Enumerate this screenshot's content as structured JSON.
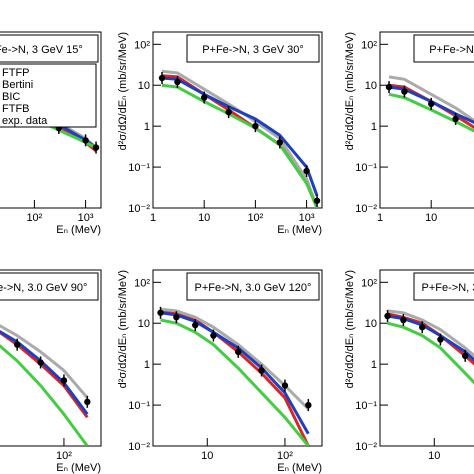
{
  "chart_data": [
    {
      "type": "line",
      "title": "P+Fe->N, 3 GeV 15°",
      "xlabel": "Eₙ (MeV)",
      "ylabel": "d²σ/dΩ/dEₙ (mb/sr/MeV)",
      "log_x": true,
      "log_y": true,
      "legend": "upper left",
      "x": [
        1.5,
        3,
        10,
        30,
        100,
        300,
        1000,
        1600
      ],
      "xlim": [
        1,
        2000
      ],
      "ylim": [
        0.01,
        200
      ],
      "xticks": [
        1,
        10,
        {
          "value": 100,
          "label": "10²"
        },
        {
          "value": 1000,
          "label": "10³"
        }
      ],
      "yticks": [
        {
          "value": 0.01,
          "label": "10⁻²"
        },
        {
          "value": 0.1,
          "label": "10⁻¹"
        },
        1,
        10,
        {
          "value": 100,
          "label": "10²"
        }
      ],
      "series": [
        {
          "name": "FTFP",
          "color": "#d62728",
          "values": [
            20,
            18,
            8,
            4,
            2,
            1,
            0.4,
            0.25
          ]
        },
        {
          "name": "Bertini",
          "color": "#aaaaaa",
          "values": [
            30,
            26,
            12,
            6,
            2.5,
            1.2,
            0.5,
            0.3
          ]
        },
        {
          "name": "BIC",
          "color": "#1f3fbf",
          "values": [
            18,
            16,
            8,
            4.5,
            2.2,
            1.1,
            0.45,
            0.3
          ]
        },
        {
          "name": "FTFB",
          "color": "#44cc44",
          "values": [
            14,
            12,
            6,
            3,
            1.5,
            0.8,
            0.4,
            0.3
          ]
        },
        {
          "name": "exp. data",
          "color": "#000000",
          "style": "points",
          "values": [
            18,
            15,
            7,
            3.5,
            1.8,
            0.9,
            0.45,
            0.3
          ]
        }
      ]
    },
    {
      "type": "line",
      "title": "P+Fe->N, 3 GeV 30°",
      "xlabel": "Eₙ (MeV)",
      "ylabel": "d²σ/dΩ/dEₙ (mb/sr/MeV)",
      "log_x": true,
      "log_y": true,
      "x": [
        1.5,
        3,
        10,
        30,
        100,
        300,
        1000,
        1600
      ],
      "xlim": [
        1,
        2000
      ],
      "ylim": [
        0.01,
        200
      ],
      "xticks": [
        1,
        10,
        {
          "value": 100,
          "label": "10²"
        },
        {
          "value": 1000,
          "label": "10³"
        }
      ],
      "yticks": [
        {
          "value": 0.01,
          "label": "10⁻²"
        },
        {
          "value": 0.1,
          "label": "10⁻¹"
        },
        1,
        10,
        {
          "value": 100,
          "label": "10²"
        }
      ],
      "series": [
        {
          "name": "FTFP",
          "color": "#d62728",
          "values": [
            17,
            16,
            6,
            2.5,
            0.9,
            0.35,
            0.05,
            0.01
          ]
        },
        {
          "name": "Bertini",
          "color": "#aaaaaa",
          "values": [
            22,
            20,
            8,
            3.5,
            1.3,
            0.5,
            0.05,
            0.01
          ]
        },
        {
          "name": "BIC",
          "color": "#1f3fbf",
          "values": [
            15,
            14,
            6,
            3,
            1.5,
            0.6,
            0.1,
            0.02
          ]
        },
        {
          "name": "FTFB",
          "color": "#44cc44",
          "values": [
            10,
            9,
            4,
            2,
            0.9,
            0.35,
            0.04,
            0.01
          ]
        },
        {
          "name": "exp. data",
          "color": "#000000",
          "style": "points",
          "values": [
            15,
            12,
            5,
            2.2,
            1,
            0.4,
            0.08,
            0.015
          ]
        }
      ]
    },
    {
      "type": "line",
      "title": "P+Fe->N, 3 GeV 45°",
      "xlabel": "Eₙ (MeV)",
      "ylabel": "d²σ/dΩ/dEₙ (mb/sr/MeV)",
      "log_x": true,
      "log_y": true,
      "x": [
        1.5,
        3,
        10,
        30,
        100,
        300,
        1000,
        1600
      ],
      "xlim": [
        1,
        2000
      ],
      "ylim": [
        0.01,
        200
      ],
      "xticks": [
        1,
        10,
        {
          "value": 100,
          "label": "10²"
        },
        {
          "value": 1000,
          "label": "10³"
        }
      ],
      "yticks": [
        {
          "value": 0.01,
          "label": "10⁻²"
        },
        {
          "value": 0.1,
          "label": "10⁻¹"
        },
        1,
        10,
        {
          "value": 100,
          "label": "10²"
        }
      ],
      "series": [
        {
          "name": "FTFP",
          "color": "#d62728",
          "values": [
            10,
            9,
            4,
            1.8,
            0.7,
            0.25,
            0.04,
            0.01
          ]
        },
        {
          "name": "Bertini",
          "color": "#aaaaaa",
          "values": [
            16,
            14,
            6,
            2.8,
            1,
            0.4,
            0.05,
            0.01
          ]
        },
        {
          "name": "BIC",
          "color": "#1f3fbf",
          "values": [
            9,
            8,
            4,
            2,
            1,
            0.4,
            0.08,
            0.02
          ]
        },
        {
          "name": "FTFB",
          "color": "#44cc44",
          "values": [
            6,
            5,
            2.5,
            1.3,
            0.6,
            0.25,
            0.03,
            0.01
          ]
        },
        {
          "name": "exp. data",
          "color": "#000000",
          "style": "points",
          "values": [
            9,
            7,
            3.5,
            1.5,
            0.7,
            0.3,
            0.06,
            0.015
          ]
        }
      ]
    },
    {
      "type": "line",
      "title": "P+Fe->N, 3.0 GeV 90°",
      "xlabel": "Eₙ (MeV)",
      "ylabel": "d²σ/dΩ/dEₙ (mb/sr/MeV)",
      "log_x": true,
      "log_y": true,
      "x": [
        2.5,
        4,
        7,
        12,
        25,
        50,
        100,
        200
      ],
      "xlim": [
        2,
        300
      ],
      "ylim": [
        0.01,
        200
      ],
      "xticks": [
        10,
        {
          "value": 100,
          "label": "10²"
        }
      ],
      "yticks": [
        {
          "value": 0.01,
          "label": "10⁻²"
        },
        {
          "value": 0.1,
          "label": "10⁻¹"
        },
        1,
        10,
        {
          "value": 100,
          "label": "10²"
        }
      ],
      "series": [
        {
          "name": "FTFP",
          "color": "#d62728",
          "values": [
            25,
            20,
            14,
            8,
            3,
            1,
            0.3,
            0.05
          ]
        },
        {
          "name": "Bertini",
          "color": "#aaaaaa",
          "values": [
            30,
            26,
            18,
            11,
            5,
            2,
            0.7,
            0.15
          ]
        },
        {
          "name": "BIC",
          "color": "#1f3fbf",
          "values": [
            22,
            19,
            13,
            8,
            3.5,
            1.2,
            0.35,
            0.06
          ]
        },
        {
          "name": "FTFB",
          "color": "#44cc44",
          "values": [
            15,
            12,
            8,
            4,
            1.2,
            0.3,
            0.06,
            0.01
          ]
        },
        {
          "name": "exp. data",
          "color": "#000000",
          "style": "points",
          "values": [
            22,
            17,
            11,
            7,
            3,
            1.1,
            0.4,
            0.12
          ]
        }
      ]
    },
    {
      "type": "line",
      "title": "P+Fe->N, 3.0 GeV 120°",
      "xlabel": "Eₙ (MeV)",
      "ylabel": "d²σ/dΩ/dEₙ (mb/sr/MeV)",
      "log_x": true,
      "log_y": true,
      "x": [
        2.5,
        4,
        7,
        12,
        25,
        50,
        100,
        200
      ],
      "xlim": [
        2,
        300
      ],
      "ylim": [
        0.01,
        200
      ],
      "xticks": [
        10,
        {
          "value": 100,
          "label": "10²"
        }
      ],
      "yticks": [
        {
          "value": 0.01,
          "label": "10⁻²"
        },
        {
          "value": 0.1,
          "label": "10⁻¹"
        },
        1,
        10,
        {
          "value": 100,
          "label": "10²"
        }
      ],
      "series": [
        {
          "name": "FTFP",
          "color": "#d62728",
          "values": [
            20,
            17,
            12,
            6,
            2,
            0.6,
            0.15,
            0.01
          ]
        },
        {
          "name": "Bertini",
          "color": "#aaaaaa",
          "values": [
            22,
            20,
            14,
            8,
            3,
            1,
            0.3,
            0.08
          ]
        },
        {
          "name": "BIC",
          "color": "#1f3fbf",
          "values": [
            18,
            16,
            11,
            6,
            2.5,
            0.8,
            0.2,
            0.02
          ]
        },
        {
          "name": "FTFB",
          "color": "#44cc44",
          "values": [
            12,
            10,
            6,
            3,
            0.8,
            0.2,
            0.05,
            0.01
          ]
        },
        {
          "name": "exp. data",
          "color": "#000000",
          "style": "points",
          "values": [
            18,
            14,
            9,
            5,
            2,
            0.7,
            0.3,
            0.1
          ]
        }
      ]
    },
    {
      "type": "line",
      "title": "P+Fe->N, 3.0 GeV 150°",
      "xlabel": "Eₙ (MeV)",
      "ylabel": "d²σ/dΩ/dEₙ (mb/sr/MeV)",
      "log_x": true,
      "log_y": true,
      "x": [
        2.5,
        4,
        7,
        12,
        25,
        50,
        100,
        200
      ],
      "xlim": [
        2,
        300
      ],
      "ylim": [
        0.01,
        200
      ],
      "xticks": [
        10,
        {
          "value": 100,
          "label": "10²"
        }
      ],
      "yticks": [
        {
          "value": 0.01,
          "label": "10⁻²"
        },
        {
          "value": 0.1,
          "label": "10⁻¹"
        },
        1,
        10,
        {
          "value": 100,
          "label": "10²"
        }
      ],
      "series": [
        {
          "name": "FTFP",
          "color": "#d62728",
          "values": [
            17,
            14,
            10,
            5,
            1.6,
            0.5,
            0.12,
            0.01
          ]
        },
        {
          "name": "Bertini",
          "color": "#aaaaaa",
          "values": [
            20,
            18,
            12,
            7,
            2.5,
            0.8,
            0.25,
            0.06
          ]
        },
        {
          "name": "BIC",
          "color": "#1f3fbf",
          "values": [
            15,
            13,
            9,
            5,
            2,
            0.6,
            0.15,
            0.02
          ]
        },
        {
          "name": "FTFB",
          "color": "#44cc44",
          "values": [
            10,
            8,
            5,
            2.5,
            0.6,
            0.15,
            0.04,
            0.01
          ]
        },
        {
          "name": "exp. data",
          "color": "#000000",
          "style": "points",
          "values": [
            15,
            12,
            8,
            4,
            1.6,
            0.6,
            0.25,
            0.08
          ]
        }
      ]
    }
  ]
}
